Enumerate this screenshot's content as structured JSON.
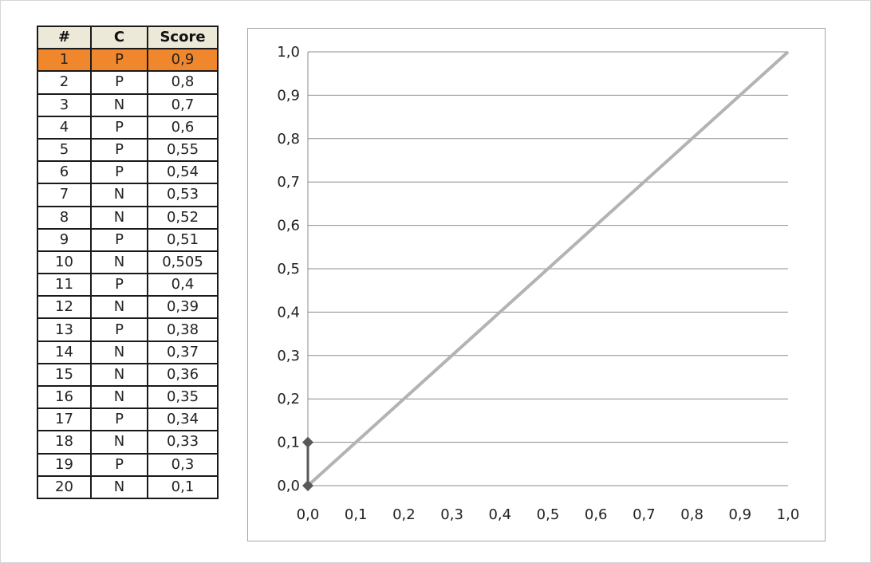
{
  "table": {
    "headers": [
      "#",
      "C",
      "Score"
    ],
    "rows": [
      [
        "1",
        "P",
        "0,9"
      ],
      [
        "2",
        "P",
        "0,8"
      ],
      [
        "3",
        "N",
        "0,7"
      ],
      [
        "4",
        "P",
        "0,6"
      ],
      [
        "5",
        "P",
        "0,55"
      ],
      [
        "6",
        "P",
        "0,54"
      ],
      [
        "7",
        "N",
        "0,53"
      ],
      [
        "8",
        "N",
        "0,52"
      ],
      [
        "9",
        "P",
        "0,51"
      ],
      [
        "10",
        "N",
        "0,505"
      ],
      [
        "11",
        "P",
        "0,4"
      ],
      [
        "12",
        "N",
        "0,39"
      ],
      [
        "13",
        "P",
        "0,38"
      ],
      [
        "14",
        "N",
        "0,37"
      ],
      [
        "15",
        "N",
        "0,36"
      ],
      [
        "16",
        "N",
        "0,35"
      ],
      [
        "17",
        "P",
        "0,34"
      ],
      [
        "18",
        "N",
        "0,33"
      ],
      [
        "19",
        "P",
        "0,3"
      ],
      [
        "20",
        "N",
        "0,1"
      ]
    ],
    "highlighted_row": 0,
    "highlight_color": "#f0872d",
    "header_color": "#ece9d8"
  },
  "chart_data": {
    "type": "line",
    "title": "",
    "xlabel": "",
    "ylabel": "",
    "xlim": [
      0,
      1
    ],
    "ylim": [
      0,
      1
    ],
    "x_ticks": [
      "0,0",
      "0,1",
      "0,2",
      "0,3",
      "0,4",
      "0,5",
      "0,6",
      "0,7",
      "0,8",
      "0,9",
      "1,0"
    ],
    "y_ticks": [
      "0,0",
      "0,1",
      "0,2",
      "0,3",
      "0,4",
      "0,5",
      "0,6",
      "0,7",
      "0,8",
      "0,9",
      "1,0"
    ],
    "grid": "horizontal",
    "legend": "none",
    "series": [
      {
        "points": [
          [
            0,
            0
          ],
          [
            0,
            0.1
          ]
        ],
        "color": "#595959",
        "marker": "diamond"
      },
      {
        "points": [
          [
            0,
            0
          ],
          [
            1,
            1
          ]
        ],
        "color": "#b3b3b3",
        "marker": "none"
      }
    ]
  }
}
